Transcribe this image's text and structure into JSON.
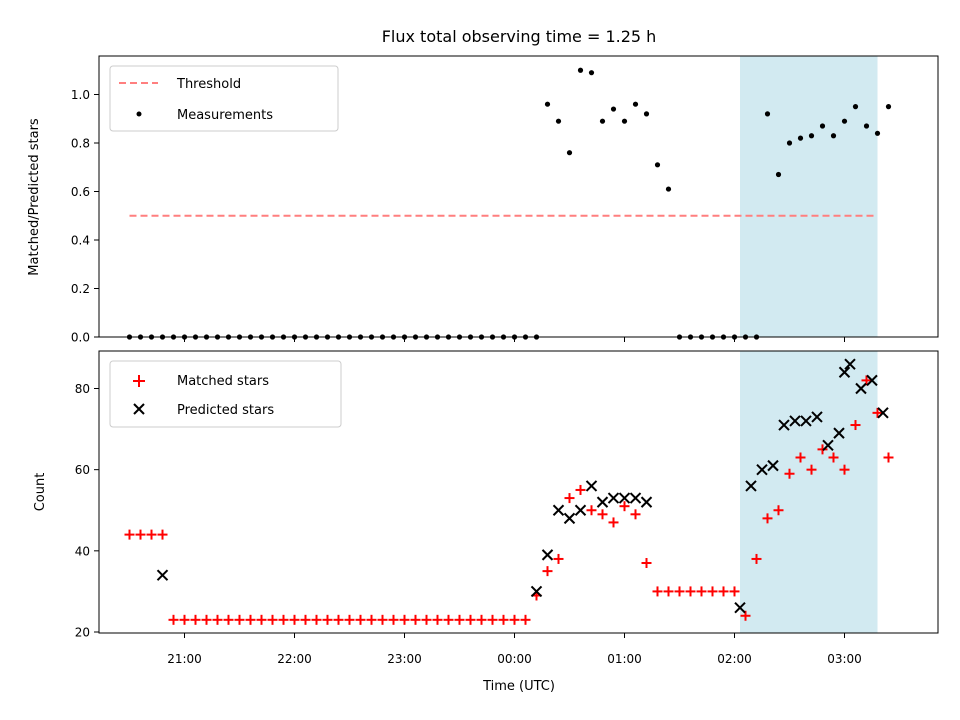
{
  "chart_data": [
    {
      "type": "scatter",
      "title": "Flux total observing time = 1.25 h",
      "ylabel": "Matched/Predicted stars",
      "xlabel": "",
      "ylim": [
        0,
        1.15
      ],
      "yticks": [
        0.0,
        0.2,
        0.4,
        0.6,
        0.8,
        1.0
      ],
      "ytick_labels": [
        "0.0",
        "0.2",
        "0.4",
        "0.6",
        "0.8",
        "1.0"
      ],
      "threshold": {
        "name": "Threshold",
        "value": 0.5,
        "x_start": "20:30",
        "x_end": "03:18",
        "color": "#ff7f7f"
      },
      "legend_position": "upper-left",
      "series": [
        {
          "name": "Measurements",
          "color": "#000000",
          "x": [
            "20:30",
            "20:36",
            "20:42",
            "20:48",
            "20:54",
            "21:00",
            "21:06",
            "21:12",
            "21:18",
            "21:24",
            "21:30",
            "21:36",
            "21:42",
            "21:48",
            "21:54",
            "22:00",
            "22:06",
            "22:12",
            "22:18",
            "22:24",
            "22:30",
            "22:36",
            "22:42",
            "22:48",
            "22:54",
            "23:00",
            "23:06",
            "23:12",
            "23:18",
            "23:24",
            "23:30",
            "23:36",
            "23:42",
            "23:48",
            "23:54",
            "00:00",
            "00:06",
            "00:12",
            "00:18",
            "00:24",
            "00:30",
            "00:36",
            "00:42",
            "00:48",
            "00:54",
            "01:00",
            "01:06",
            "01:12",
            "01:18",
            "01:24",
            "01:30",
            "01:36",
            "01:42",
            "01:48",
            "01:54",
            "02:00",
            "02:06",
            "02:12",
            "02:18",
            "02:24",
            "02:30",
            "02:36",
            "02:42",
            "02:48",
            "02:54",
            "03:00",
            "03:06",
            "03:12",
            "03:18",
            "03:24"
          ],
          "y": [
            0,
            0,
            0,
            0,
            0,
            0,
            0,
            0,
            0,
            0,
            0,
            0,
            0,
            0,
            0,
            0,
            0,
            0,
            0,
            0,
            0,
            0,
            0,
            0,
            0,
            0,
            0,
            0,
            0,
            0,
            0,
            0,
            0,
            0,
            0,
            0,
            0,
            0,
            0.96,
            0.89,
            0.76,
            1.1,
            1.09,
            0.89,
            0.94,
            0.89,
            0.96,
            0.92,
            0.71,
            0.61,
            0,
            0,
            0,
            0,
            0,
            0,
            0,
            0,
            0.92,
            0.67,
            0.8,
            0.82,
            0.83,
            0.87,
            0.83,
            0.89,
            0.95,
            0.87,
            0.84,
            0.95
          ]
        }
      ],
      "highlight": {
        "x_start": "02:03",
        "x_end": "03:18",
        "color": "#add8e6"
      }
    },
    {
      "type": "scatter",
      "title": "",
      "xlabel": "Time (UTC)",
      "ylabel": "Count",
      "ylim": [
        19.5,
        89.5
      ],
      "yticks": [
        20,
        40,
        60,
        80
      ],
      "ytick_labels": [
        "20",
        "40",
        "60",
        "80"
      ],
      "xticks": [
        "21:00",
        "22:00",
        "23:00",
        "00:00",
        "01:00",
        "02:00",
        "03:00"
      ],
      "legend_position": "upper-left",
      "series": [
        {
          "name": "Matched stars",
          "marker": "plus",
          "color": "#ff0000",
          "x": [
            "20:30",
            "20:36",
            "20:42",
            "20:48",
            "20:54",
            "21:00",
            "21:06",
            "21:12",
            "21:18",
            "21:24",
            "21:30",
            "21:36",
            "21:42",
            "21:48",
            "21:54",
            "22:00",
            "22:06",
            "22:12",
            "22:18",
            "22:24",
            "22:30",
            "22:36",
            "22:42",
            "22:48",
            "22:54",
            "23:00",
            "23:06",
            "23:12",
            "23:18",
            "23:24",
            "23:30",
            "23:36",
            "23:42",
            "23:48",
            "23:54",
            "00:00",
            "00:06",
            "00:12",
            "00:18",
            "00:24",
            "00:30",
            "00:36",
            "00:42",
            "00:48",
            "00:54",
            "01:00",
            "01:06",
            "01:12",
            "01:18",
            "01:24",
            "01:30",
            "01:36",
            "01:42",
            "01:48",
            "01:54",
            "02:00",
            "02:06",
            "02:12",
            "02:18",
            "02:24",
            "02:30",
            "02:36",
            "02:42",
            "02:48",
            "02:54",
            "03:00",
            "03:06",
            "03:12",
            "03:18",
            "03:24"
          ],
          "y": [
            44,
            44,
            44,
            44,
            23,
            23,
            23,
            23,
            23,
            23,
            23,
            23,
            23,
            23,
            23,
            23,
            23,
            23,
            23,
            23,
            23,
            23,
            23,
            23,
            23,
            23,
            23,
            23,
            23,
            23,
            23,
            23,
            23,
            23,
            23,
            23,
            23,
            29,
            35,
            38,
            53,
            55,
            50,
            49,
            47,
            51,
            49,
            37,
            30,
            30,
            30,
            30,
            30,
            30,
            30,
            30,
            24,
            38,
            48,
            50,
            59,
            63,
            60,
            65,
            63,
            60,
            71,
            82,
            74,
            63
          ]
        },
        {
          "name": "Predicted stars",
          "marker": "x",
          "color": "#000000",
          "x": [
            "20:48",
            "00:12",
            "00:18",
            "00:24",
            "00:30",
            "00:36",
            "00:42",
            "00:48",
            "00:54",
            "01:00",
            "01:06",
            "01:12",
            "02:03",
            "02:09",
            "02:15",
            "02:21",
            "02:27",
            "02:33",
            "02:39",
            "02:45",
            "02:51",
            "02:57",
            "03:00",
            "03:03",
            "03:09",
            "03:15",
            "03:21"
          ],
          "y": [
            34,
            30,
            39,
            50,
            48,
            50,
            56,
            52,
            53,
            53,
            53,
            52,
            26,
            56,
            60,
            61,
            71,
            72,
            72,
            73,
            66,
            69,
            84,
            86,
            80,
            82,
            74
          ]
        }
      ],
      "highlight": {
        "x_start": "02:03",
        "x_end": "03:18",
        "color": "#add8e6"
      }
    }
  ]
}
